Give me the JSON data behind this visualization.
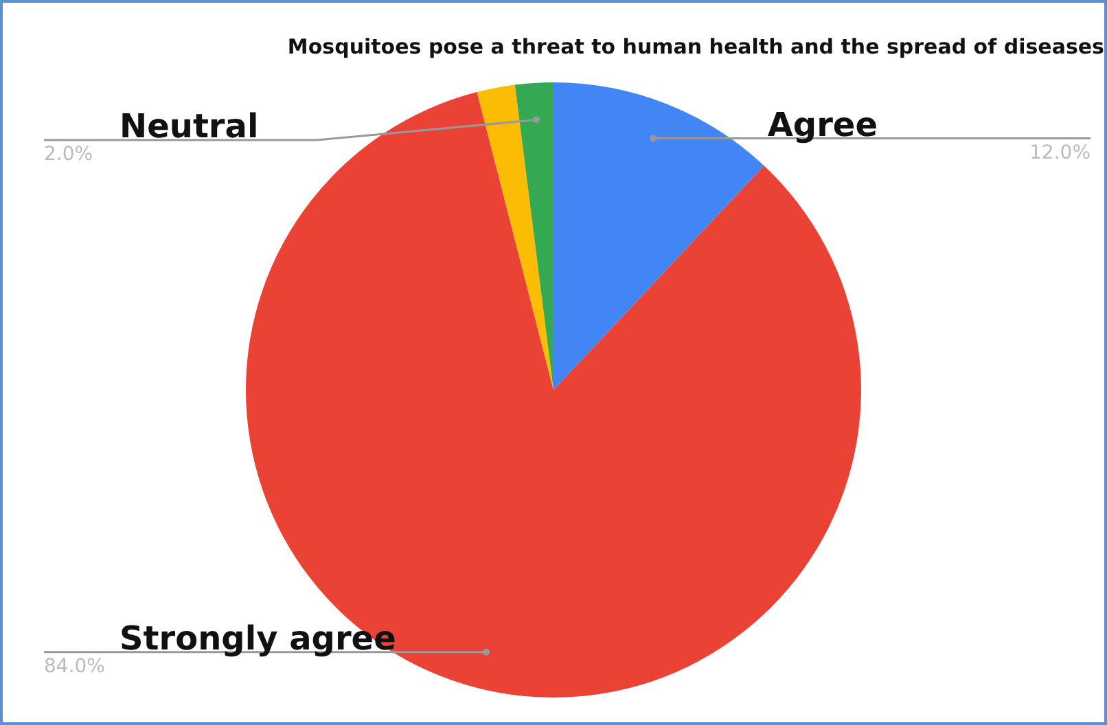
{
  "chart_data": {
    "type": "pie",
    "title": "Mosquitoes pose a threat to human health and the spread of diseases",
    "categories": [
      "Agree",
      "Strongly agree",
      null,
      "Neutral"
    ],
    "values": [
      12,
      84,
      2,
      2
    ],
    "value_labels": [
      "12.0%",
      "84.0%",
      null,
      "2.0%"
    ],
    "colors": [
      "#4285f4",
      "#ea4335",
      "#fbbc04",
      "#34a853"
    ],
    "legend": false
  }
}
